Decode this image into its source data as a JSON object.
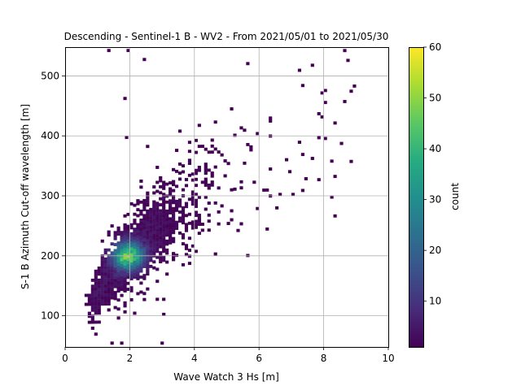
{
  "chart_data": {
    "type": "heatmap",
    "title": "Descending - Sentinel-1 B - WV2 - From 2021/05/01 to 2021/05/30",
    "xlabel": "Wave Watch 3 Hs [m]",
    "ylabel": "S-1 B Azimuth Cut-off wavelength [m]",
    "xlim": [
      0,
      10
    ],
    "ylim": [
      48,
      548
    ],
    "xticks": [
      0,
      2,
      4,
      6,
      8,
      10
    ],
    "yticks": [
      100,
      200,
      300,
      400,
      500
    ],
    "grid": true,
    "bin_size": {
      "x": 0.1,
      "y": 5
    },
    "relationship": {
      "description": "2D histogram of cut-off wavelength vs Hs; dense core near Hs 2 m / 200 m, spreading to ~9 m / 420 m",
      "ridge": [
        [
          0.7,
          115
        ],
        [
          1.5,
          175
        ],
        [
          2.0,
          200
        ],
        [
          3.0,
          250
        ],
        [
          4.0,
          295
        ],
        [
          5.0,
          320
        ],
        [
          6.0,
          355
        ],
        [
          7.0,
          380
        ],
        [
          8.0,
          400
        ],
        [
          9.0,
          410
        ]
      ],
      "peak": {
        "x": 1.95,
        "y": 200,
        "count": 58
      }
    },
    "colorbar": {
      "label": "count",
      "min": 1,
      "max": 60,
      "ticks": [
        10,
        20,
        30,
        40,
        50,
        60
      ],
      "colormap": "viridis"
    }
  }
}
